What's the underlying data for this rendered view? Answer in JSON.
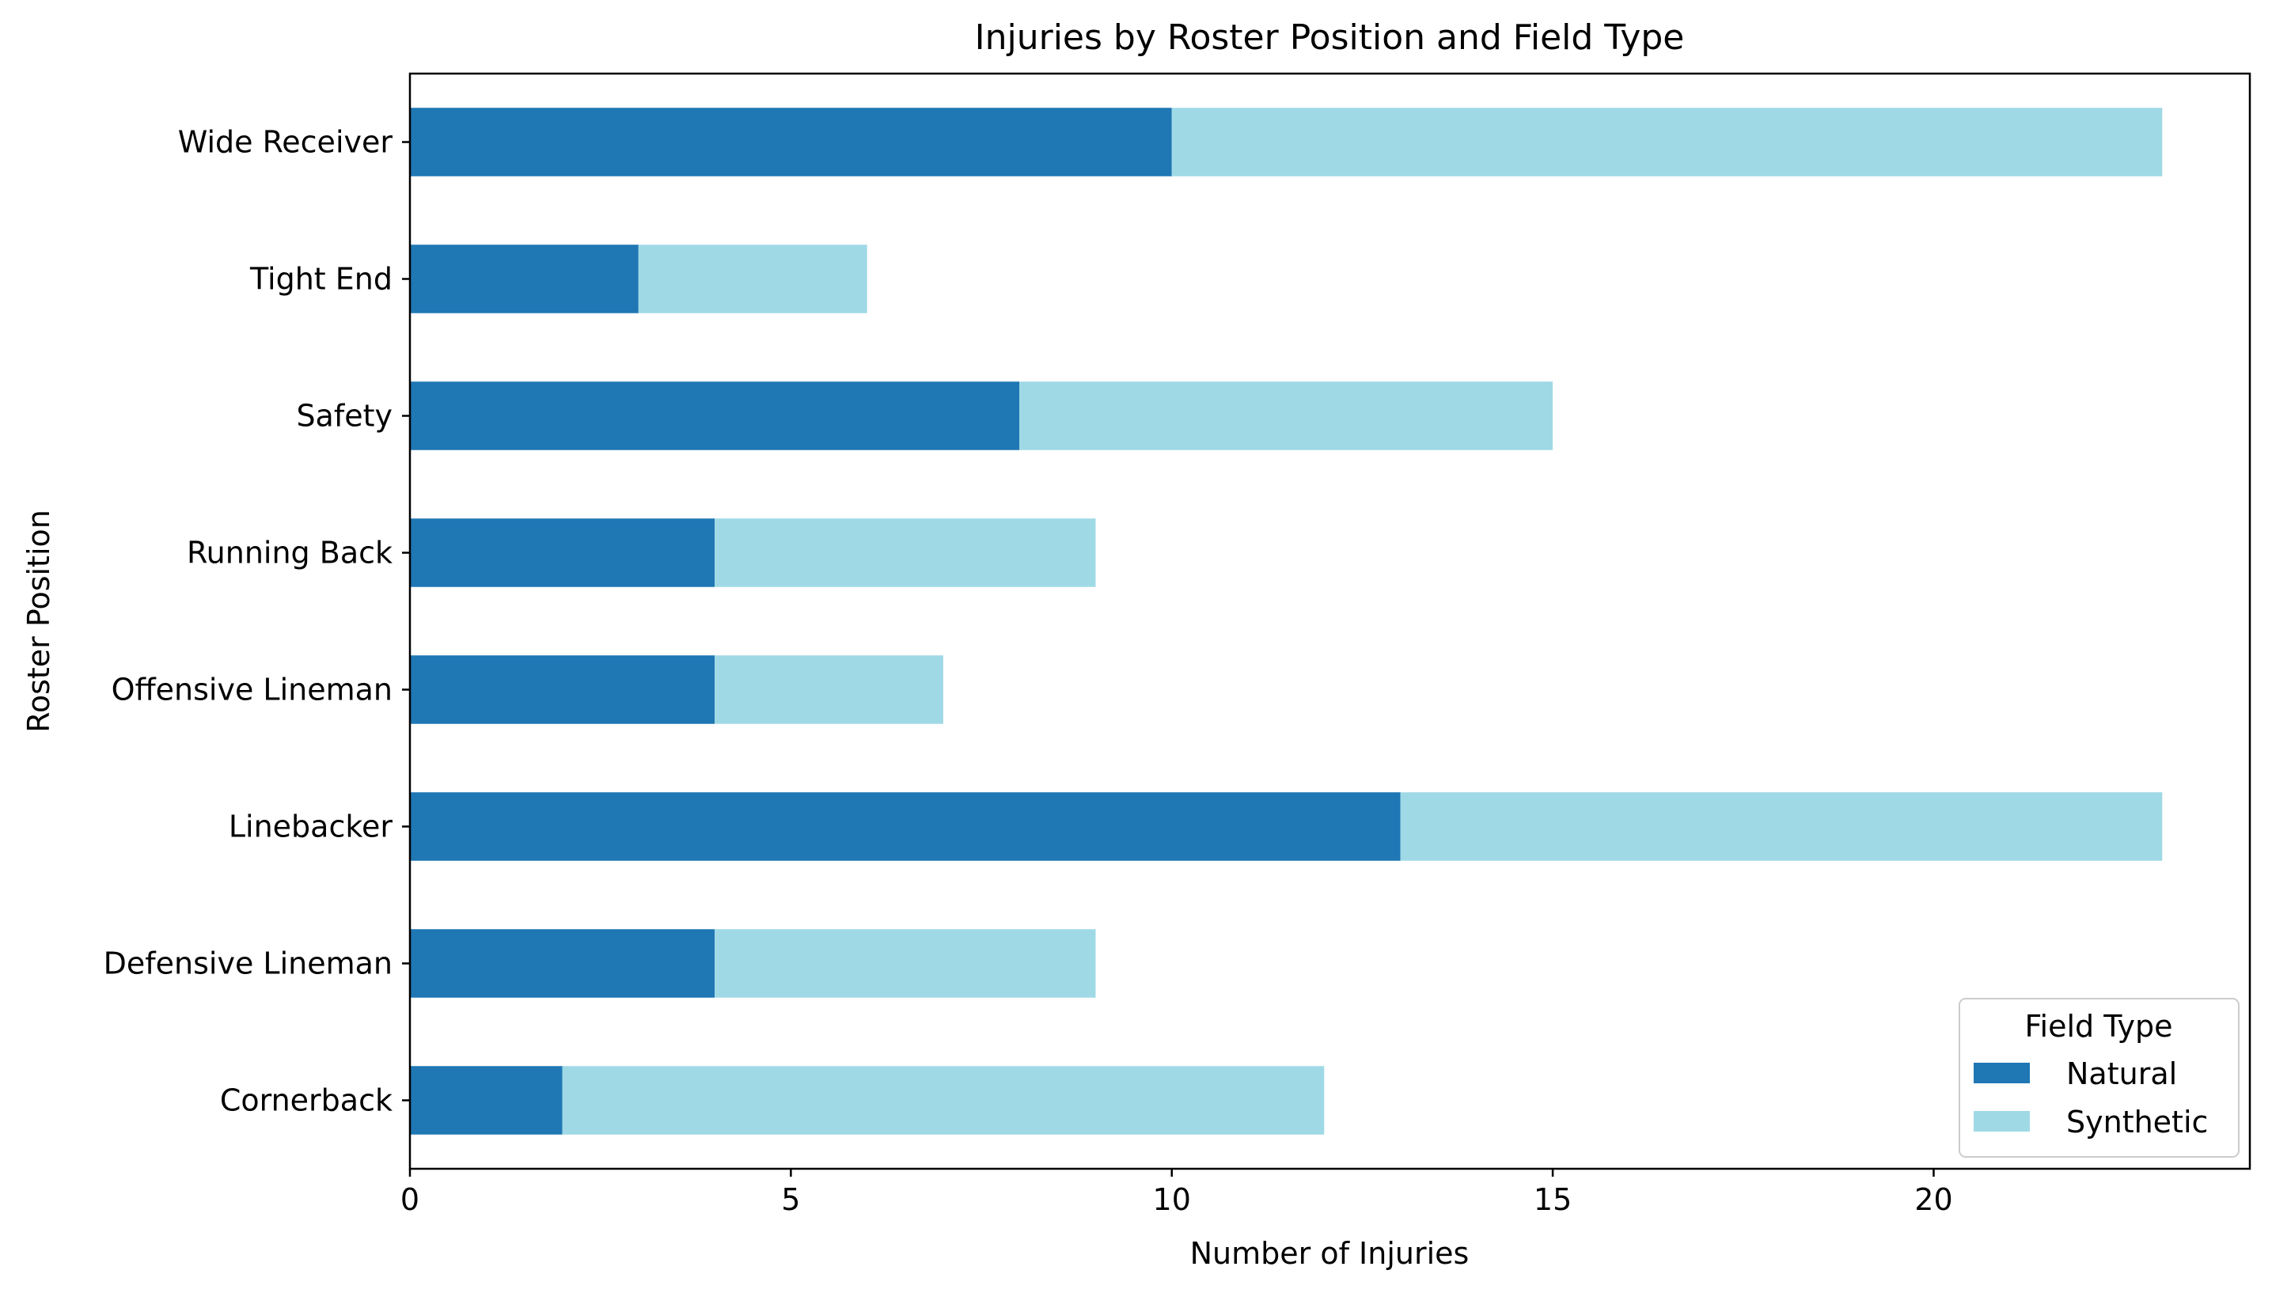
{
  "chart_data": {
    "type": "bar",
    "orientation": "horizontal",
    "stacked": true,
    "title": "Injuries by Roster Position and Field Type",
    "xlabel": "Number of Injuries",
    "ylabel": "Roster Position",
    "categories": [
      "Cornerback",
      "Defensive Lineman",
      "Linebacker",
      "Offensive Lineman",
      "Running Back",
      "Safety",
      "Tight End",
      "Wide Receiver"
    ],
    "series": [
      {
        "name": "Natural",
        "color": "#1f77b4",
        "values": [
          2,
          4,
          13,
          4,
          4,
          8,
          3,
          10
        ]
      },
      {
        "name": "Synthetic",
        "color": "#9fd9e5",
        "values": [
          10,
          5,
          10,
          3,
          5,
          7,
          3,
          13
        ]
      }
    ],
    "xlim": [
      0,
      24.15
    ],
    "xticks": [
      0,
      5,
      10,
      15,
      20
    ],
    "grid": false,
    "legend": {
      "title": "Field Type",
      "position": "lower-right"
    }
  }
}
